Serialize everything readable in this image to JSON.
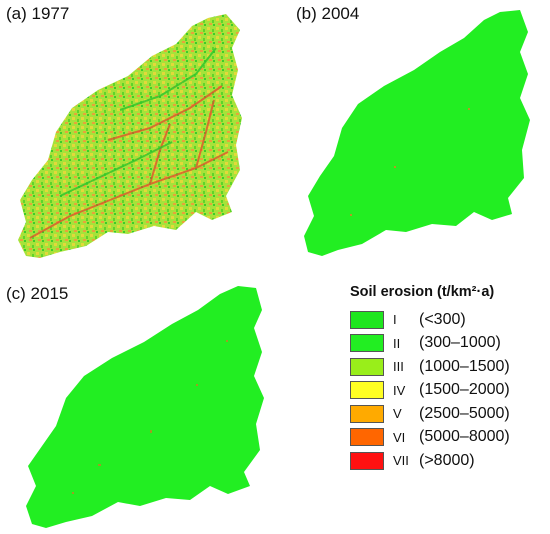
{
  "panels": [
    {
      "label": "(a) 1977"
    },
    {
      "label": "(b) 2004"
    },
    {
      "label": "(c) 2015"
    }
  ],
  "legend": {
    "title": "Soil erosion (t/km²·a)",
    "classes": [
      {
        "numeral": "I",
        "range": "(<300)",
        "color": "#1ee61e"
      },
      {
        "numeral": "II",
        "range": "(300–1000)",
        "color": "#22ee22"
      },
      {
        "numeral": "III",
        "range": "(1000–1500)",
        "color": "#99ee1a"
      },
      {
        "numeral": "IV",
        "range": "(1500–2000)",
        "color": "#ffff22"
      },
      {
        "numeral": "V",
        "range": "(2500–5000)",
        "color": "#ffaa00"
      },
      {
        "numeral": "VI",
        "range": "(5000–8000)",
        "color": "#ff6600"
      },
      {
        "numeral": "VII",
        "range": "(>8000)",
        "color": "#ff1111"
      }
    ]
  }
}
